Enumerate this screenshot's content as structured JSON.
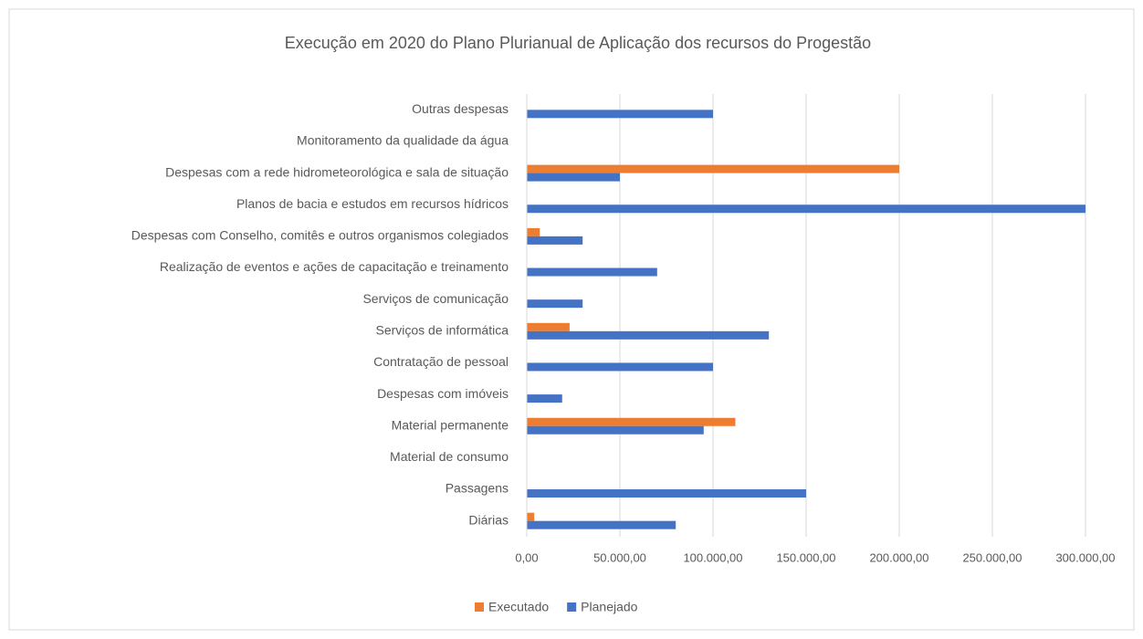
{
  "chart_data": {
    "type": "hbar",
    "title": "Execução em 2020 do Plano Plurianual de Aplicação dos recursos do Progestão",
    "categories": [
      "Outras despesas",
      "Monitoramento da qualidade da água",
      "Despesas com a rede hidrometeorológica e sala de situação",
      "Planos de bacia e estudos em recursos hídricos",
      "Despesas com Conselho, comitês e outros organismos colegiados",
      "Realização de eventos e ações de capacitação e treinamento",
      "Serviços de comunicação",
      "Serviços de informática",
      "Contratação de pessoal",
      "Despesas com imóveis",
      "Material permanente",
      "Material de consumo",
      "Passagens",
      "Diárias"
    ],
    "series": [
      {
        "name": "Executado",
        "color": "#ed7d31",
        "values": [
          0,
          0,
          200000,
          0,
          7000,
          0,
          0,
          23000,
          0,
          0,
          112000,
          0,
          0,
          4000
        ]
      },
      {
        "name": "Planejado",
        "color": "#4472c4",
        "values": [
          100000,
          0,
          50000,
          300000,
          30000,
          70000,
          30000,
          130000,
          100000,
          19000,
          95000,
          0,
          150000,
          80000
        ]
      }
    ],
    "xlim": [
      0,
      300000
    ],
    "xticks": [
      {
        "value": 0,
        "label": "0,00"
      },
      {
        "value": 50000,
        "label": "50.000,00"
      },
      {
        "value": 100000,
        "label": "100.000,00"
      },
      {
        "value": 150000,
        "label": "150.000,00"
      },
      {
        "value": 200000,
        "label": "200.000,00"
      },
      {
        "value": 250000,
        "label": "250.000,00"
      },
      {
        "value": 300000,
        "label": "300.000,00"
      }
    ],
    "grid": true,
    "legend": "bottom"
  }
}
